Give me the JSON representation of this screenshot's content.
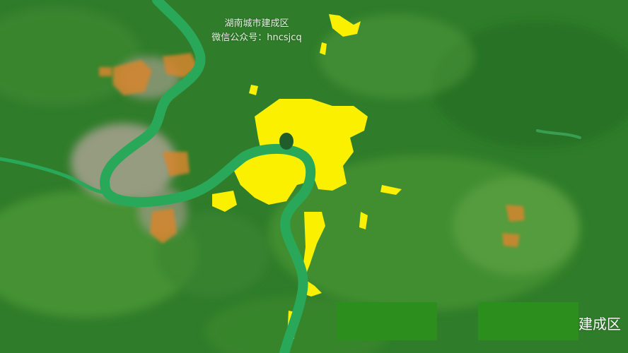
{
  "watermark": {
    "line1": "湖南城市建成区",
    "line2": "微信公众号：hncsjcq"
  },
  "corner_label": "建成区",
  "colors": {
    "vegetation": "#2f7d2a",
    "vegetation_light": "#58a43a",
    "river": "#2aa85a",
    "built_up_highlight": "#fbf000",
    "built_up_other": "#d6852f",
    "urban_grey": "#a7a18f",
    "legend_box": "#2c8e1c"
  },
  "layers": [
    {
      "name": "river",
      "icon": "river-icon"
    },
    {
      "name": "built-up-area",
      "icon": "highlight-area-icon"
    }
  ]
}
